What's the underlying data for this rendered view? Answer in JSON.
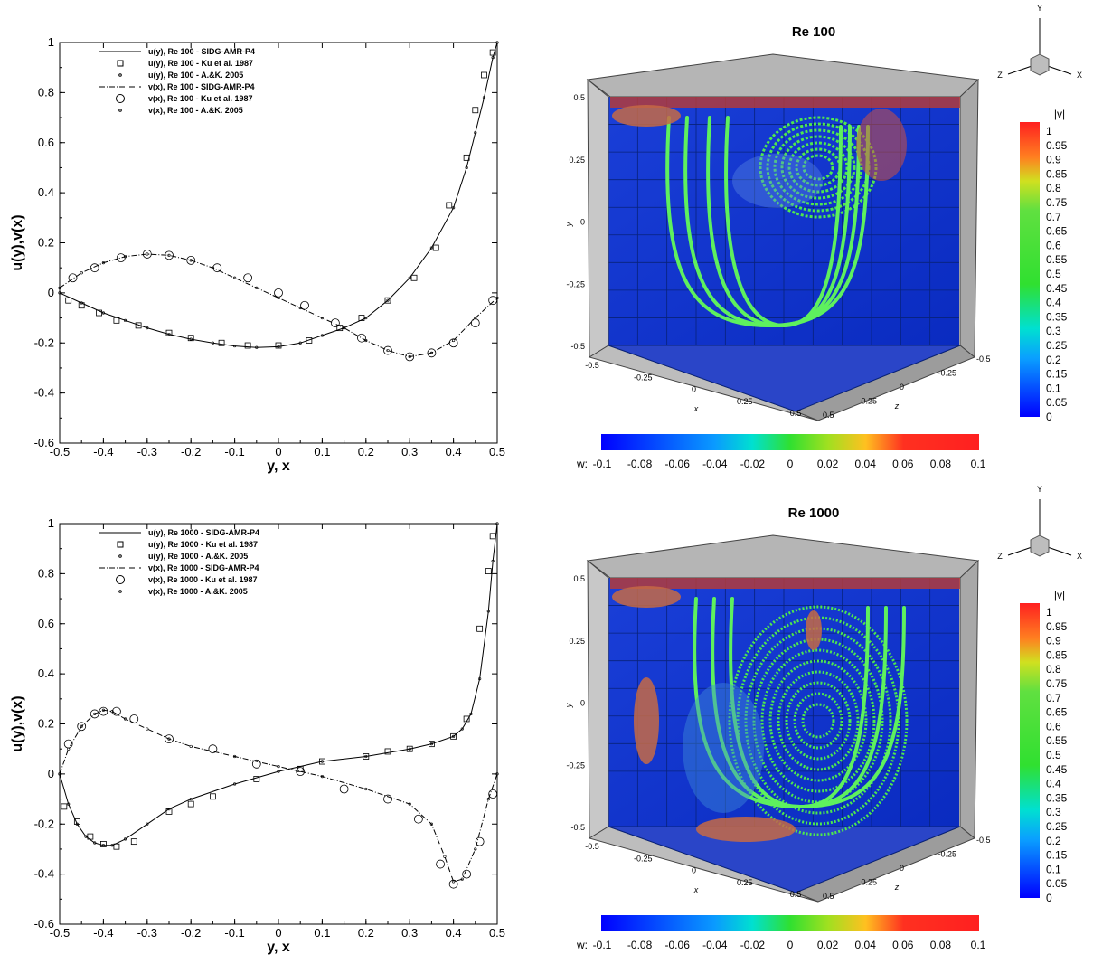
{
  "chart_data": [
    {
      "type": "line",
      "ylabel": "u(y),v(x)",
      "xlabel": "y, x",
      "xlim": [
        -0.5,
        0.5
      ],
      "ylim": [
        -0.6,
        1
      ],
      "x_ticks": [
        "-0.5",
        "-0.4",
        "-0.3",
        "-0.2",
        "-0.1",
        "0",
        "0.1",
        "0.2",
        "0.3",
        "0.4",
        "0.5"
      ],
      "y_ticks": [
        "-0.6",
        "-0.4",
        "-0.2",
        "0",
        "0.2",
        "0.4",
        "0.6",
        "0.8",
        "1"
      ],
      "legend_position": "top-left",
      "legend": [
        "u(y), Re  100 - SIDG-AMR-P4",
        "u(y), Re  100 - Ku et al. 1987",
        "u(y), Re  100 - A.&K. 2005",
        "v(x), Re  100 - SIDG-AMR-P4",
        "v(x), Re  100 - Ku et al. 1987",
        "v(x), Re  100 - A.&K. 2005"
      ],
      "series": [
        {
          "name": "u(y), Re  100 - SIDG-AMR-P4",
          "marker": "line",
          "x": [
            -0.5,
            -0.45,
            -0.4,
            -0.35,
            -0.3,
            -0.25,
            -0.2,
            -0.15,
            -0.1,
            -0.05,
            0,
            0.05,
            0.1,
            0.15,
            0.2,
            0.25,
            0.3,
            0.35,
            0.4,
            0.43,
            0.45,
            0.47,
            0.49,
            0.5
          ],
          "y": [
            0,
            -0.04,
            -0.08,
            -0.11,
            -0.14,
            -0.165,
            -0.185,
            -0.2,
            -0.212,
            -0.218,
            -0.215,
            -0.2,
            -0.17,
            -0.14,
            -0.1,
            -0.03,
            0.06,
            0.18,
            0.34,
            0.5,
            0.64,
            0.78,
            0.94,
            1
          ]
        },
        {
          "name": "u(y), Re  100 - Ku et al. 1987",
          "marker": "square",
          "x": [
            -0.48,
            -0.45,
            -0.41,
            -0.37,
            -0.32,
            -0.25,
            -0.2,
            -0.13,
            -0.07,
            0.0,
            0.07,
            0.14,
            0.19,
            0.25,
            0.31,
            0.36,
            0.39,
            0.43,
            0.45,
            0.47,
            0.49
          ],
          "y": [
            -0.03,
            -0.05,
            -0.08,
            -0.11,
            -0.13,
            -0.16,
            -0.18,
            -0.2,
            -0.21,
            -0.21,
            -0.19,
            -0.14,
            -0.1,
            -0.03,
            0.06,
            0.18,
            0.35,
            0.54,
            0.73,
            0.87,
            0.96
          ]
        },
        {
          "name": "v(x), Re  100 - SIDG-AMR-P4",
          "marker": "dashdot",
          "x": [
            -0.5,
            -0.45,
            -0.4,
            -0.35,
            -0.3,
            -0.25,
            -0.2,
            -0.15,
            -0.1,
            -0.05,
            0,
            0.05,
            0.1,
            0.15,
            0.2,
            0.25,
            0.3,
            0.35,
            0.4,
            0.45,
            0.5
          ],
          "y": [
            0.02,
            0.08,
            0.12,
            0.145,
            0.155,
            0.15,
            0.13,
            0.1,
            0.06,
            0.02,
            -0.02,
            -0.06,
            -0.1,
            -0.14,
            -0.19,
            -0.23,
            -0.255,
            -0.24,
            -0.19,
            -0.1,
            -0.02
          ]
        },
        {
          "name": "v(x), Re  100 - Ku et al. 1987",
          "marker": "circle",
          "x": [
            -0.47,
            -0.42,
            -0.36,
            -0.3,
            -0.25,
            -0.2,
            -0.14,
            -0.07,
            0.0,
            0.06,
            0.13,
            0.19,
            0.25,
            0.3,
            0.35,
            0.4,
            0.45,
            0.49
          ],
          "y": [
            0.06,
            0.1,
            0.14,
            0.155,
            0.15,
            0.13,
            0.1,
            0.06,
            0.0,
            -0.05,
            -0.12,
            -0.18,
            -0.23,
            -0.255,
            -0.24,
            -0.2,
            -0.12,
            -0.03
          ]
        }
      ]
    },
    {
      "type": "line",
      "ylabel": "u(y),v(x)",
      "xlabel": "y, x",
      "xlim": [
        -0.5,
        0.5
      ],
      "ylim": [
        -0.6,
        1
      ],
      "x_ticks": [
        "-0.5",
        "-0.4",
        "-0.3",
        "-0.2",
        "-0.1",
        "0",
        "0.1",
        "0.2",
        "0.3",
        "0.4",
        "0.5"
      ],
      "y_ticks": [
        "-0.6",
        "-0.4",
        "-0.2",
        "0",
        "0.2",
        "0.4",
        "0.6",
        "0.8",
        "1"
      ],
      "legend_position": "top-left",
      "legend": [
        "u(y), Re 1000 - SIDG-AMR-P4",
        "u(y), Re 1000 - Ku et al. 1987",
        "u(y), Re 1000 - A.&K. 2005",
        "v(x), Re 1000 - SIDG-AMR-P4",
        "v(x), Re 1000 - Ku et al. 1987",
        "v(x), Re 1000 - A.&K. 2005"
      ],
      "series": [
        {
          "name": "u(y), Re 1000 - SIDG-AMR-P4",
          "marker": "line",
          "x": [
            -0.5,
            -0.48,
            -0.46,
            -0.44,
            -0.42,
            -0.4,
            -0.38,
            -0.35,
            -0.3,
            -0.25,
            -0.2,
            -0.1,
            0,
            0.1,
            0.2,
            0.3,
            0.35,
            0.4,
            0.42,
            0.44,
            0.46,
            0.48,
            0.49,
            0.5
          ],
          "y": [
            0,
            -0.12,
            -0.2,
            -0.25,
            -0.275,
            -0.285,
            -0.285,
            -0.26,
            -0.2,
            -0.14,
            -0.1,
            -0.04,
            0.01,
            0.05,
            0.07,
            0.1,
            0.12,
            0.15,
            0.18,
            0.24,
            0.38,
            0.65,
            0.85,
            1
          ]
        },
        {
          "name": "u(y), Re 1000 - Ku et al. 1987",
          "marker": "square",
          "x": [
            -0.49,
            -0.46,
            -0.43,
            -0.4,
            -0.37,
            -0.33,
            -0.25,
            -0.2,
            -0.15,
            -0.05,
            0.05,
            0.1,
            0.2,
            0.25,
            0.3,
            0.35,
            0.4,
            0.43,
            0.46,
            0.48,
            0.49
          ],
          "y": [
            -0.13,
            -0.19,
            -0.25,
            -0.28,
            -0.29,
            -0.27,
            -0.15,
            -0.12,
            -0.09,
            -0.02,
            0.02,
            0.05,
            0.07,
            0.09,
            0.1,
            0.12,
            0.15,
            0.22,
            0.58,
            0.81,
            0.95
          ]
        },
        {
          "name": "v(x), Re 1000 - SIDG-AMR-P4",
          "marker": "dashdot",
          "x": [
            -0.5,
            -0.48,
            -0.45,
            -0.42,
            -0.4,
            -0.38,
            -0.35,
            -0.3,
            -0.25,
            -0.2,
            -0.1,
            0,
            0.1,
            0.2,
            0.3,
            0.35,
            0.38,
            0.4,
            0.42,
            0.45,
            0.48,
            0.5
          ],
          "y": [
            0,
            0.1,
            0.19,
            0.24,
            0.255,
            0.25,
            0.22,
            0.18,
            0.14,
            0.11,
            0.07,
            0.03,
            -0.01,
            -0.06,
            -0.12,
            -0.2,
            -0.33,
            -0.43,
            -0.42,
            -0.3,
            -0.1,
            0
          ]
        },
        {
          "name": "v(x), Re 1000 - Ku et al. 1987",
          "marker": "circle",
          "x": [
            -0.48,
            -0.45,
            -0.42,
            -0.4,
            -0.37,
            -0.33,
            -0.25,
            -0.15,
            -0.05,
            0.05,
            0.15,
            0.25,
            0.32,
            0.37,
            0.4,
            0.43,
            0.46,
            0.49
          ],
          "y": [
            0.12,
            0.19,
            0.24,
            0.25,
            0.25,
            0.22,
            0.14,
            0.1,
            0.04,
            0.01,
            -0.06,
            -0.1,
            -0.18,
            -0.36,
            -0.44,
            -0.4,
            -0.27,
            -0.08
          ]
        }
      ]
    },
    {
      "type": "heatmap",
      "title": "Re  100",
      "axis_labels": {
        "y": "y",
        "x": "x",
        "z": "z"
      },
      "y_ticks": [
        "0.5",
        "0.25",
        "0",
        "-0.25",
        "-0.5"
      ],
      "x_ticks": [
        "-0.5",
        "-0.25",
        "0",
        "0.25",
        "0.5"
      ],
      "z_ticks": [
        "-0.5",
        "-0.25",
        "0",
        "0.25",
        "0.5"
      ],
      "triad": {
        "Y": "Y",
        "Z": "Z",
        "X": "X"
      },
      "colorbar_v": {
        "title": "|v|",
        "ticks": [
          "1",
          "0.95",
          "0.9",
          "0.85",
          "0.8",
          "0.75",
          "0.7",
          "0.65",
          "0.6",
          "0.55",
          "0.5",
          "0.45",
          "0.4",
          "0.35",
          "0.3",
          "0.25",
          "0.2",
          "0.15",
          "0.1",
          "0.05",
          "0"
        ]
      },
      "colorbar_w": {
        "title": "w:",
        "ticks": [
          "-0.1",
          "-0.08",
          "-0.06",
          "-0.04",
          "-0.02",
          "0",
          "0.02",
          "0.04",
          "0.06",
          "0.08",
          "0.1"
        ]
      }
    },
    {
      "type": "heatmap",
      "title": "Re 1000",
      "axis_labels": {
        "y": "y",
        "x": "x",
        "z": "z"
      },
      "y_ticks": [
        "0.5",
        "0.25",
        "0",
        "-0.25",
        "-0.5"
      ],
      "x_ticks": [
        "-0.5",
        "-0.25",
        "0",
        "0.25",
        "0.5"
      ],
      "z_ticks": [
        "-0.5",
        "-0.25",
        "0",
        "0.25",
        "0.5"
      ],
      "triad": {
        "Y": "Y",
        "Z": "Z",
        "X": "X"
      },
      "colorbar_v": {
        "title": "|v|",
        "ticks": [
          "1",
          "0.95",
          "0.9",
          "0.85",
          "0.8",
          "0.75",
          "0.7",
          "0.65",
          "0.6",
          "0.55",
          "0.5",
          "0.45",
          "0.4",
          "0.35",
          "0.3",
          "0.25",
          "0.2",
          "0.15",
          "0.1",
          "0.05",
          "0"
        ]
      },
      "colorbar_w": {
        "title": "w:",
        "ticks": [
          "-0.1",
          "-0.08",
          "-0.06",
          "-0.04",
          "-0.02",
          "0",
          "0.02",
          "0.04",
          "0.06",
          "0.08",
          "0.1"
        ]
      }
    }
  ]
}
